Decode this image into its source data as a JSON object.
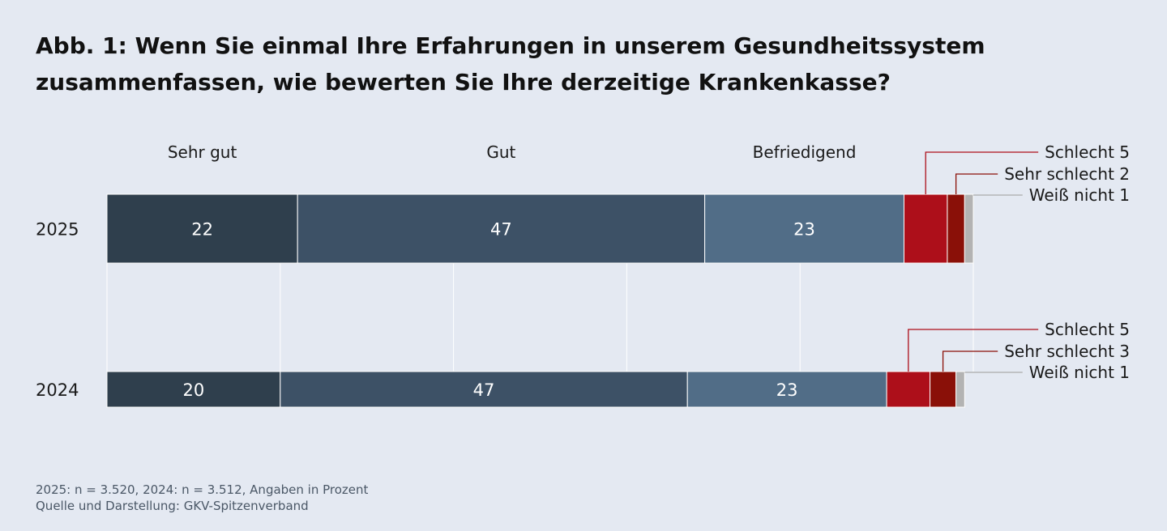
{
  "chart_data": {
    "type": "bar",
    "title": "Abb. 1: Wenn Sie einmal Ihre Erfahrungen in unserem Gesundheitssystem zusammenfassen, wie bewerten Sie Ihre derzeitige Krankenkasse?",
    "orientation": "horizontal-stacked",
    "categories": [
      "2025",
      "2024"
    ],
    "series": [
      {
        "name": "Sehr gut",
        "values": [
          22,
          20
        ],
        "color": "#2f3f4d"
      },
      {
        "name": "Gut",
        "values": [
          47,
          47
        ],
        "color": "#3d5166"
      },
      {
        "name": "Befriedigend",
        "values": [
          23,
          23
        ],
        "color": "#516d87"
      },
      {
        "name": "Schlecht",
        "values": [
          5,
          5
        ],
        "color": "#ad0f1a"
      },
      {
        "name": "Sehr schlecht",
        "values": [
          2,
          3
        ],
        "color": "#8a1008"
      },
      {
        "name": "Weiß nicht",
        "values": [
          1,
          1
        ],
        "color": "#b3b3b3"
      }
    ],
    "callouts": [
      [
        "Schlecht 5",
        "Sehr schlecht 2",
        "Weiß nicht 1"
      ],
      [
        "Schlecht 5",
        "Sehr schlecht 3",
        "Weiß nicht 1"
      ]
    ],
    "xlim": [
      0,
      100
    ],
    "grid": true
  },
  "footer": {
    "line1": "2025: n = 3.520, 2024: n = 3.512, Angaben in Prozent",
    "line2": "Quelle und Darstellung: GKV-Spitzenverband"
  }
}
